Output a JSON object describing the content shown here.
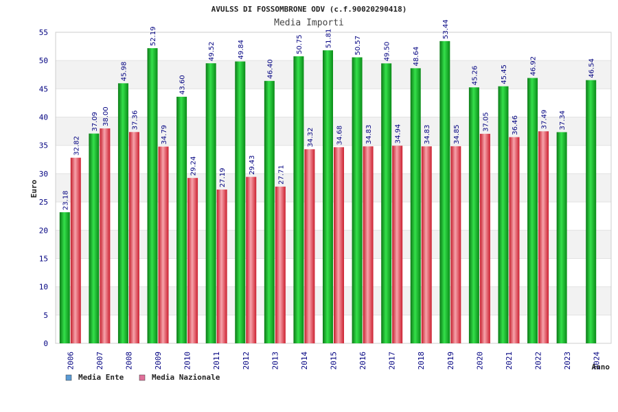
{
  "chart_data": {
    "type": "bar",
    "title": "AVULSS DI FOSSOMBRONE ODV (c.f.90020290418)",
    "subtitle": "Media Importi",
    "xlabel": "Anno",
    "ylabel": "Euro",
    "ylim": [
      0,
      55
    ],
    "ytick_step": 5,
    "grid": true,
    "legend_position": "bottom-left",
    "categories": [
      "2006",
      "2007",
      "2008",
      "2009",
      "2010",
      "2011",
      "2012",
      "2013",
      "2014",
      "2015",
      "2016",
      "2017",
      "2018",
      "2019",
      "2020",
      "2021",
      "2022",
      "2023",
      "2024"
    ],
    "series": [
      {
        "name": "Media Ente",
        "legend_color": "#5b9bd5",
        "bar_color": "#11aa22",
        "values": [
          23.18,
          37.09,
          45.98,
          52.19,
          43.6,
          49.52,
          49.84,
          46.4,
          50.75,
          51.81,
          50.57,
          49.5,
          48.64,
          53.44,
          45.26,
          45.45,
          46.92,
          37.34,
          46.54
        ],
        "labels": [
          "23.18",
          "37.09",
          "45.98",
          "52.19",
          "43.60",
          "49.52",
          "49.84",
          "46.40",
          "50.75",
          "51.81",
          "50.57",
          "49.50",
          "48.64",
          "53.44",
          "45.26",
          "45.45",
          "46.92",
          "37.34",
          "46.54"
        ]
      },
      {
        "name": "Media Nazionale",
        "legend_color": "#e0709a",
        "bar_color": "#e02838",
        "values": [
          32.82,
          38.0,
          37.36,
          34.79,
          29.24,
          27.19,
          29.43,
          27.71,
          34.32,
          34.68,
          34.83,
          34.94,
          34.83,
          34.85,
          37.05,
          36.46,
          37.49,
          null,
          null
        ],
        "labels": [
          "32.82",
          "38.00",
          "37.36",
          "34.79",
          "29.24",
          "27.19",
          "29.43",
          "27.71",
          "34.32",
          "34.68",
          "34.83",
          "34.94",
          "34.83",
          "34.85",
          "37.05",
          "36.46",
          "37.49",
          null,
          null
        ]
      }
    ]
  },
  "colors": {
    "title": "#222222",
    "subtitle": "#444444",
    "tick": "#000080",
    "band": "#f2f2f2",
    "frame": "#cccccc"
  }
}
